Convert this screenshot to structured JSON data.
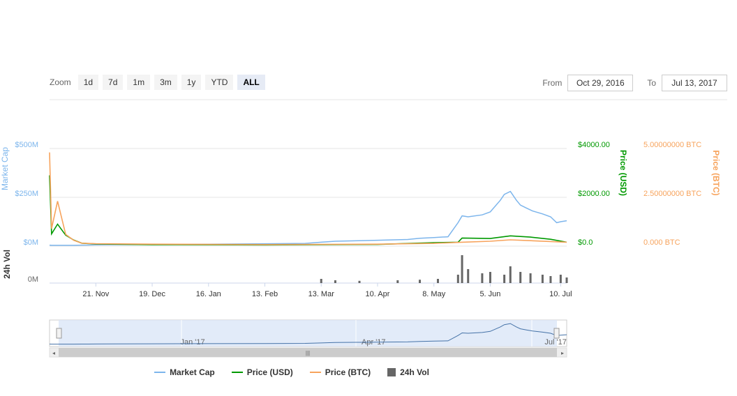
{
  "zoom": {
    "label": "Zoom",
    "buttons": [
      "1d",
      "7d",
      "1m",
      "3m",
      "1y",
      "YTD",
      "ALL"
    ],
    "active": "ALL"
  },
  "range": {
    "from_label": "From",
    "from": "Oct 29, 2016",
    "to_label": "To",
    "to": "Jul 13, 2017"
  },
  "colors": {
    "market_cap": "#7cb5ec",
    "price_usd": "#009900",
    "price_btc": "#f7a35c",
    "volume": "#666666",
    "grid": "#e6e6e6",
    "navigator_fill": "#dbe6f8"
  },
  "chart_data": {
    "type": "line",
    "x_tick_labels": [
      "21. Nov",
      "19. Dec",
      "16. Jan",
      "13. Feb",
      "13. Mar",
      "10. Apr",
      "8. May",
      "5. Jun",
      "10. Jul"
    ],
    "x_ticks": [
      "2016-11-21",
      "2016-12-19",
      "2017-01-16",
      "2017-02-13",
      "2017-03-13",
      "2017-04-10",
      "2017-05-08",
      "2017-06-05",
      "2017-07-10"
    ],
    "x_range": [
      "2016-10-29",
      "2017-07-13"
    ],
    "axes": {
      "market_cap": {
        "title": "Market Cap",
        "ticks": [
          "$0M",
          "$250M",
          "$500M"
        ],
        "range": [
          0,
          500
        ]
      },
      "price_usd": {
        "title": "Price (USD)",
        "ticks": [
          "$0.0",
          "$2000.00",
          "$4000.00"
        ],
        "range": [
          0,
          4000
        ]
      },
      "price_btc": {
        "title": "Price (BTC)",
        "ticks": [
          "0.000 BTC",
          "2.50000000 BTC",
          "5.00000000 BTC"
        ],
        "range": [
          0,
          5
        ]
      },
      "volume": {
        "title": "24h Vol",
        "ticks": [
          "0M"
        ]
      }
    },
    "series": [
      {
        "name": "Market Cap",
        "axis": "market_cap",
        "x": [
          "2016-10-29",
          "2016-10-30",
          "2016-11-02",
          "2016-11-06",
          "2016-11-10",
          "2016-11-14",
          "2016-11-21",
          "2016-12-01",
          "2016-12-19",
          "2017-01-16",
          "2017-02-13",
          "2017-03-05",
          "2017-03-13",
          "2017-03-20",
          "2017-04-01",
          "2017-04-10",
          "2017-04-25",
          "2017-05-01",
          "2017-05-08",
          "2017-05-15",
          "2017-05-20",
          "2017-05-22",
          "2017-05-25",
          "2017-06-01",
          "2017-06-05",
          "2017-06-10",
          "2017-06-12",
          "2017-06-15",
          "2017-06-18",
          "2017-06-20",
          "2017-06-23",
          "2017-06-26",
          "2017-07-01",
          "2017-07-05",
          "2017-07-08",
          "2017-07-10",
          "2017-07-13"
        ],
        "values": [
          5,
          4,
          4,
          4,
          4,
          5,
          6,
          7,
          8,
          10,
          12,
          14,
          20,
          25,
          28,
          30,
          34,
          40,
          44,
          48,
          120,
          155,
          150,
          160,
          175,
          235,
          265,
          280,
          235,
          210,
          195,
          180,
          165,
          150,
          120,
          125,
          130
        ]
      },
      {
        "name": "Price (USD)",
        "axis": "price_usd",
        "x": [
          "2016-10-29",
          "2016-10-30",
          "2016-11-02",
          "2016-11-06",
          "2016-11-10",
          "2016-11-14",
          "2016-11-21",
          "2016-12-19",
          "2017-02-13",
          "2017-04-10",
          "2017-05-08",
          "2017-05-20",
          "2017-05-22",
          "2017-06-05",
          "2017-06-15",
          "2017-06-25",
          "2017-07-05",
          "2017-07-13"
        ],
        "values": [
          2900,
          500,
          900,
          450,
          250,
          120,
          90,
          60,
          50,
          70,
          140,
          160,
          330,
          310,
          420,
          370,
          280,
          160
        ]
      },
      {
        "name": "Price (BTC)",
        "axis": "price_btc",
        "x": [
          "2016-10-29",
          "2016-10-30",
          "2016-11-02",
          "2016-11-06",
          "2016-11-10",
          "2016-11-14",
          "2016-11-21",
          "2016-12-19",
          "2017-02-13",
          "2017-04-10",
          "2017-05-08",
          "2017-05-22",
          "2017-06-05",
          "2017-06-15",
          "2017-07-13"
        ],
        "values": [
          4.8,
          0.9,
          2.3,
          0.6,
          0.3,
          0.15,
          0.12,
          0.1,
          0.08,
          0.1,
          0.14,
          0.2,
          0.25,
          0.32,
          0.2
        ]
      },
      {
        "name": "24h Vol",
        "axis": "volume",
        "type": "bar",
        "x": [
          "2017-03-13",
          "2017-03-20",
          "2017-04-01",
          "2017-04-20",
          "2017-05-01",
          "2017-05-10",
          "2017-05-20",
          "2017-05-22",
          "2017-05-25",
          "2017-06-01",
          "2017-06-05",
          "2017-06-12",
          "2017-06-15",
          "2017-06-20",
          "2017-06-25",
          "2017-07-01",
          "2017-07-05",
          "2017-07-10",
          "2017-07-13"
        ],
        "values": [
          0.15,
          0.1,
          0.08,
          0.1,
          0.12,
          0.15,
          0.3,
          1.0,
          0.5,
          0.35,
          0.4,
          0.3,
          0.6,
          0.4,
          0.35,
          0.3,
          0.25,
          0.3,
          0.2
        ]
      }
    ],
    "grid": true,
    "legend": "bottom"
  },
  "navigator": {
    "labels": [
      "Jan '17",
      "Apr '17",
      "Jul '17"
    ],
    "label_dates": [
      "2017-01-01",
      "2017-04-01",
      "2017-07-01"
    ],
    "scrollbar_grip": "|||"
  },
  "legend": {
    "market_cap": "Market Cap",
    "price_usd": "Price (USD)",
    "price_btc": "Price (BTC)",
    "volume": "24h Vol"
  }
}
